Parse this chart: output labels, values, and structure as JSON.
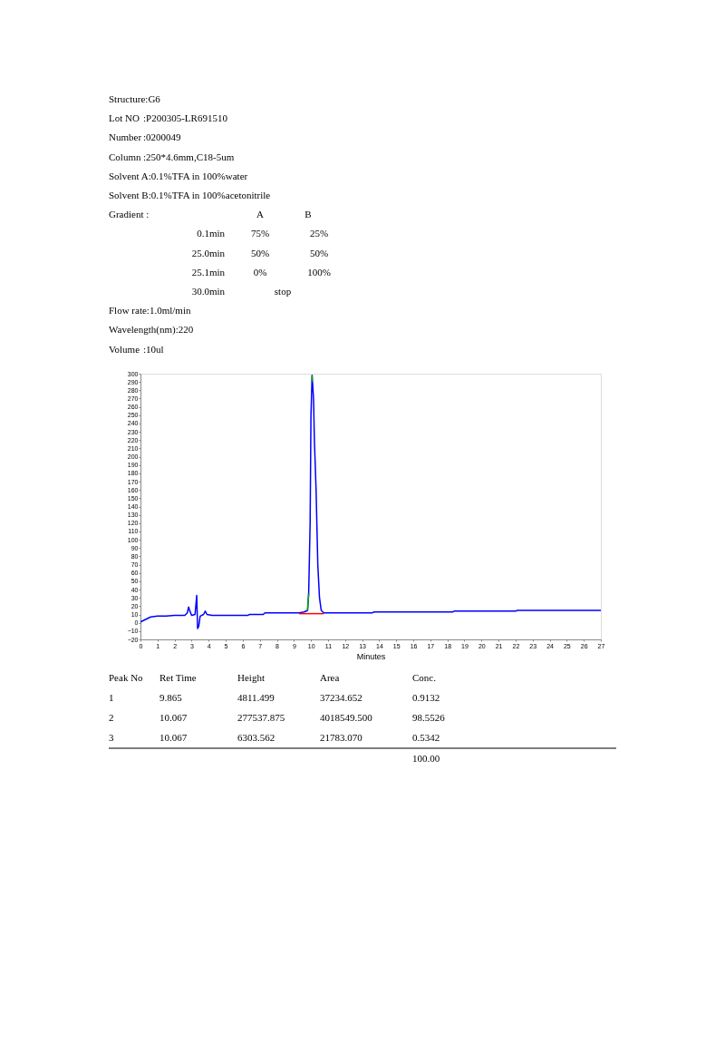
{
  "chart_data": {
    "type": "line",
    "xlabel": "Minutes",
    "xlim": [
      0,
      27
    ],
    "xticks": [
      0,
      1,
      2,
      3,
      4,
      5,
      6,
      7,
      8,
      9,
      10,
      11,
      12,
      13,
      14,
      15,
      16,
      17,
      18,
      19,
      20,
      21,
      22,
      23,
      24,
      25,
      26,
      27
    ],
    "ylim": [
      -20,
      300
    ],
    "yticks": [
      -20,
      -10,
      0,
      10,
      20,
      30,
      40,
      50,
      60,
      70,
      80,
      90,
      100,
      110,
      120,
      130,
      140,
      150,
      160,
      170,
      180,
      190,
      200,
      210,
      220,
      230,
      240,
      250,
      260,
      270,
      280,
      290,
      300
    ],
    "grid": false,
    "series": [
      {
        "color": "#0000ff",
        "x": [
          0,
          0.3,
          0.6,
          1,
          1.5,
          2,
          2.6,
          2.75,
          2.82,
          2.9,
          3.0,
          3.2,
          3.3,
          3.35,
          3.42,
          3.5,
          3.7,
          3.8,
          3.9,
          4.2,
          5,
          6.3,
          6.4,
          7.2,
          7.3,
          8,
          9,
          9.3,
          9.6,
          9.8,
          9.865,
          9.95,
          10.0,
          10.067,
          10.15,
          10.2,
          10.3,
          10.4,
          10.5,
          10.6,
          10.75,
          11,
          12,
          13.6,
          13.7,
          18.3,
          18.4,
          22,
          22.1,
          27
        ],
        "values": [
          1,
          4,
          7,
          8,
          8,
          9,
          9,
          12,
          19,
          14,
          9,
          10,
          33,
          -7,
          -4,
          8,
          10,
          14,
          10,
          9,
          9,
          9,
          10,
          10,
          12,
          12,
          12,
          12,
          13,
          15,
          35,
          120,
          250,
          298,
          270,
          220,
          160,
          70,
          30,
          15,
          12,
          12,
          12,
          12,
          13,
          13,
          14,
          14,
          15,
          15
        ]
      },
      {
        "color": "#ff0000",
        "x": [
          9.3,
          10.75
        ],
        "values": [
          11,
          11
        ]
      },
      {
        "color": "#00aa00",
        "x": [
          9.8,
          9.865,
          9.9,
          10.05,
          10.067
        ],
        "values": [
          15,
          35,
          null,
          290,
          298
        ]
      }
    ],
    "annotations": [
      "Structure:G6",
      "Lot NO   :P200305-LR691510",
      "Number   :0200049",
      "Column   :250*4.6mm,C18-5um",
      "Solvent A:0.1%TFA in 100%water",
      "Solvent B:0.1%TFA in 100%acetonitrile",
      "Gradient :   A   B",
      "0.1min   75%   25%",
      "25.0min   50%   50%",
      "25.1min   0%   100%",
      "30.0min   stop",
      "Flow rate:1.0ml/min",
      "Wavelength(nm):220",
      "Volume   :10ul",
      "Peak No   Ret Time   Height   Area   Conc.",
      "1   9.865   4811.499   37234.652   0.9132",
      "2   10.067   277537.875   4018549.500   98.5526",
      "3   10.067   6303.562   21783.070   0.5342",
      "100.00"
    ]
  }
}
